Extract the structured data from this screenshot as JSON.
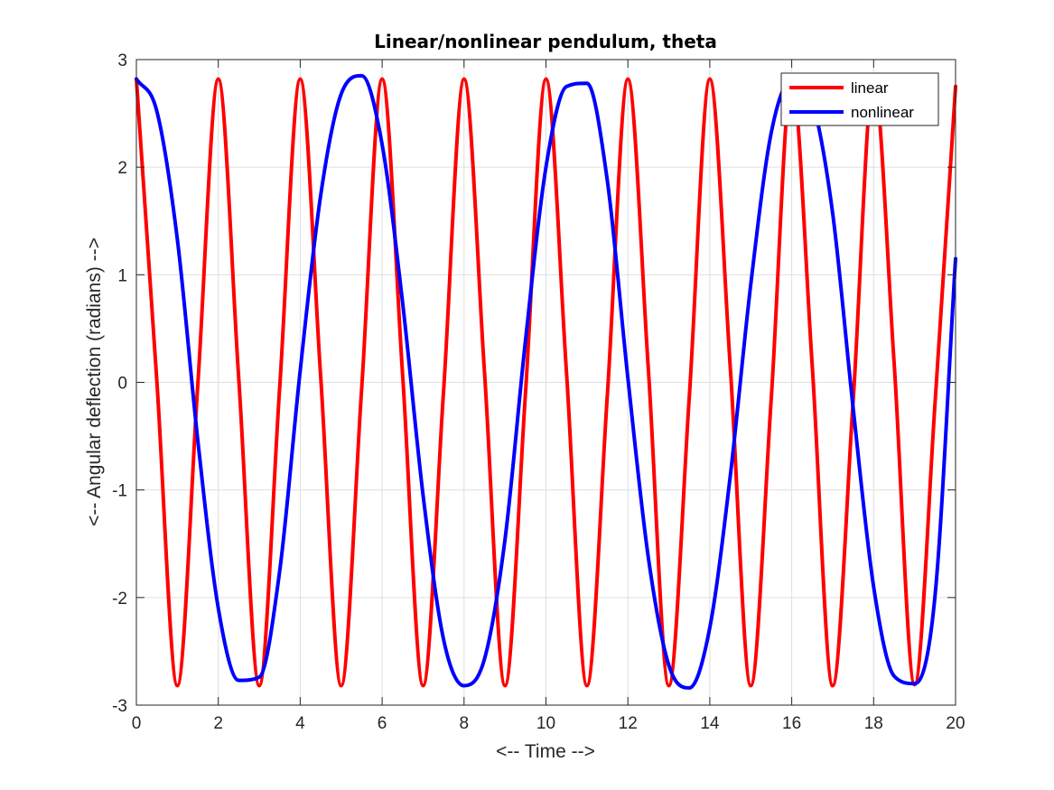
{
  "chart_data": {
    "type": "line",
    "title": "Linear/nonlinear pendulum, theta",
    "xlabel": "<-- Time -->",
    "ylabel": "<-- Angular deflection (radians) -->",
    "xlim": [
      0,
      20
    ],
    "ylim": [
      -3,
      3
    ],
    "xticks": [
      0,
      2,
      4,
      6,
      8,
      10,
      12,
      14,
      16,
      18,
      20
    ],
    "yticks": [
      -3,
      -2,
      -1,
      0,
      1,
      2,
      3
    ],
    "xtick_labels": [
      "0",
      "2",
      "4",
      "6",
      "8",
      "10",
      "12",
      "14",
      "16",
      "18",
      "20"
    ],
    "ytick_labels": [
      "-3",
      "-2",
      "-1",
      "0",
      "1",
      "2",
      "3"
    ],
    "grid": true,
    "legend_position": "top-right",
    "series": [
      {
        "name": "linear",
        "color": "#ff0000",
        "x": [
          0,
          0.5,
          1.0,
          1.5,
          2.0,
          2.5,
          3.0,
          3.5,
          4.0,
          4.5,
          5.0,
          5.5,
          6.0,
          6.5,
          7.0,
          7.5,
          8.0,
          8.5,
          9.0,
          9.5,
          10.0,
          10.5,
          11.0,
          11.5,
          12.0,
          12.5,
          13.0,
          13.5,
          14.0,
          14.5,
          15.0,
          15.5,
          16.0,
          16.5,
          17.0,
          17.5,
          18.0,
          18.5,
          19.0,
          19.5,
          20.0
        ],
        "y": [
          2.82,
          0.01,
          -2.82,
          -0.02,
          2.82,
          0.03,
          -2.82,
          -0.04,
          2.82,
          0.05,
          -2.82,
          -0.06,
          2.82,
          0.07,
          -2.82,
          -0.08,
          2.82,
          0.09,
          -2.82,
          -0.1,
          2.82,
          0.1,
          -2.82,
          -0.11,
          2.82,
          0.12,
          -2.82,
          -0.13,
          2.82,
          0.14,
          -2.82,
          -0.15,
          2.82,
          0.16,
          -2.82,
          -0.17,
          2.81,
          0.18,
          -2.81,
          -0.19,
          2.75
        ]
      },
      {
        "name": "nonlinear",
        "color": "#0000ff",
        "x": [
          0,
          0.5,
          1.0,
          1.5,
          2.0,
          2.5,
          3.0,
          3.5,
          4.0,
          4.5,
          5.0,
          5.5,
          6.0,
          6.5,
          7.0,
          7.5,
          8.0,
          8.5,
          9.0,
          9.5,
          10.0,
          10.5,
          11.0,
          11.5,
          12.0,
          12.5,
          13.0,
          13.5,
          14.0,
          14.5,
          15.0,
          15.5,
          16.0,
          16.5,
          17.0,
          17.5,
          18.0,
          18.5,
          19.0,
          19.5,
          20.0
        ],
        "y": [
          2.82,
          2.52,
          1.33,
          -0.54,
          -2.1,
          -2.77,
          -2.74,
          -1.75,
          0.11,
          1.74,
          2.68,
          2.85,
          2.21,
          0.74,
          -1.05,
          -2.39,
          -2.82,
          -2.57,
          -1.46,
          0.39,
          2.0,
          2.75,
          2.78,
          1.87,
          0.04,
          -1.63,
          -2.63,
          -2.84,
          -2.28,
          -0.87,
          0.91,
          2.32,
          2.81,
          2.61,
          1.57,
          -0.24,
          -1.9,
          -2.73,
          -2.8,
          -1.98,
          1.15
        ]
      }
    ]
  }
}
